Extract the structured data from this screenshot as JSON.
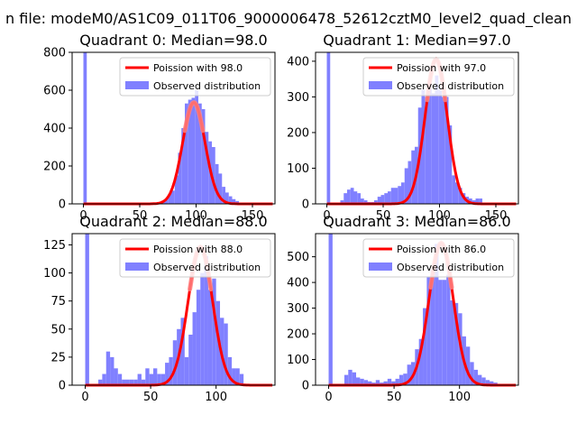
{
  "figure_title": "n file: modeM0/AS1C09_011T06_9000006478_52612cztM0_level2_quad_clean",
  "colors": {
    "hist": "#8080ff",
    "curve": "#ff0000",
    "curve_peak": "#ff8080"
  },
  "chart_data": [
    {
      "type": "bar",
      "title": "Quadrant 0: Median=98.0",
      "xlim": [
        -10,
        170
      ],
      "ylim": [
        0,
        800
      ],
      "xticks": [
        0,
        50,
        100,
        150
      ],
      "yticks": [
        0,
        200,
        400,
        600,
        800
      ],
      "bin_width": 3,
      "legend": [
        "Poission with 98.0",
        "Observed distribution"
      ],
      "poisson_mean": 98.0,
      "poisson_peak": 535,
      "bins_x": [
        0,
        66,
        69,
        72,
        75,
        78,
        81,
        84,
        87,
        90,
        93,
        96,
        99,
        102,
        105,
        108,
        111,
        114,
        117,
        120,
        123,
        126,
        129,
        132,
        135,
        138
      ],
      "bins_y": [
        800,
        5,
        10,
        25,
        50,
        70,
        150,
        270,
        400,
        530,
        550,
        560,
        600,
        530,
        500,
        380,
        330,
        300,
        210,
        160,
        90,
        60,
        40,
        25,
        15,
        5
      ]
    },
    {
      "type": "bar",
      "title": "Quadrant 1: Median=97.0",
      "xlim": [
        -10,
        170
      ],
      "ylim": [
        0,
        425
      ],
      "xticks": [
        0,
        50,
        100,
        150
      ],
      "yticks": [
        0,
        100,
        200,
        300,
        400
      ],
      "bin_width": 3,
      "legend": [
        "Poission with 97.0",
        "Observed distribution"
      ],
      "poisson_mean": 97.0,
      "poisson_peak": 405,
      "bins_x": [
        0,
        12,
        15,
        18,
        21,
        24,
        27,
        30,
        33,
        36,
        39,
        42,
        45,
        48,
        51,
        54,
        57,
        60,
        63,
        66,
        69,
        72,
        75,
        78,
        81,
        84,
        87,
        90,
        93,
        96,
        99,
        102,
        105,
        108,
        111,
        114,
        117,
        120,
        123,
        126,
        129,
        132,
        135
      ],
      "bins_y": [
        425,
        10,
        30,
        40,
        45,
        35,
        30,
        15,
        10,
        5,
        5,
        10,
        20,
        25,
        30,
        35,
        45,
        45,
        50,
        60,
        100,
        120,
        150,
        160,
        270,
        320,
        300,
        350,
        310,
        360,
        320,
        300,
        300,
        220,
        80,
        60,
        45,
        30,
        20,
        15,
        10,
        15,
        15
      ]
    },
    {
      "type": "bar",
      "title": "Quadrant 2: Median=88.0",
      "xlim": [
        -10,
        145
      ],
      "ylim": [
        0,
        135
      ],
      "xticks": [
        0,
        50,
        100
      ],
      "yticks": [
        0,
        25,
        50,
        75,
        100,
        125
      ],
      "bin_width": 3,
      "legend": [
        "Poission with 88.0",
        "Observed distribution"
      ],
      "poisson_mean": 88.0,
      "poisson_peak": 123,
      "bins_x": [
        0,
        10,
        13,
        16,
        19,
        22,
        25,
        28,
        31,
        34,
        37,
        40,
        43,
        46,
        49,
        52,
        55,
        58,
        61,
        64,
        67,
        70,
        73,
        76,
        79,
        82,
        85,
        88,
        91,
        94,
        97,
        100,
        103,
        106,
        109,
        112,
        115,
        118
      ],
      "bins_y": [
        135,
        5,
        10,
        30,
        25,
        15,
        10,
        5,
        5,
        5,
        5,
        10,
        5,
        15,
        10,
        15,
        10,
        10,
        20,
        25,
        40,
        50,
        60,
        25,
        45,
        65,
        85,
        100,
        115,
        85,
        95,
        75,
        60,
        55,
        25,
        15,
        15,
        10
      ]
    },
    {
      "type": "bar",
      "title": "Quadrant 3: Median=86.0",
      "xlim": [
        -10,
        145
      ],
      "ylim": [
        0,
        590
      ],
      "xticks": [
        0,
        50,
        100
      ],
      "yticks": [
        0,
        100,
        200,
        300,
        400,
        500
      ],
      "bin_width": 3,
      "legend": [
        "Poission with 86.0",
        "Observed distribution"
      ],
      "poisson_mean": 86.0,
      "poisson_peak": 553,
      "bins_x": [
        0,
        12,
        15,
        18,
        21,
        24,
        27,
        30,
        33,
        36,
        39,
        42,
        45,
        48,
        51,
        54,
        57,
        60,
        63,
        66,
        69,
        72,
        75,
        78,
        81,
        84,
        87,
        90,
        93,
        96,
        99,
        102,
        105,
        108,
        111,
        114,
        117,
        120,
        123,
        126
      ],
      "bins_y": [
        590,
        40,
        60,
        50,
        30,
        25,
        20,
        15,
        10,
        20,
        10,
        15,
        25,
        15,
        25,
        40,
        45,
        80,
        90,
        140,
        180,
        300,
        420,
        450,
        550,
        410,
        410,
        430,
        330,
        320,
        280,
        190,
        150,
        90,
        60,
        40,
        30,
        20,
        15,
        10
      ]
    }
  ]
}
